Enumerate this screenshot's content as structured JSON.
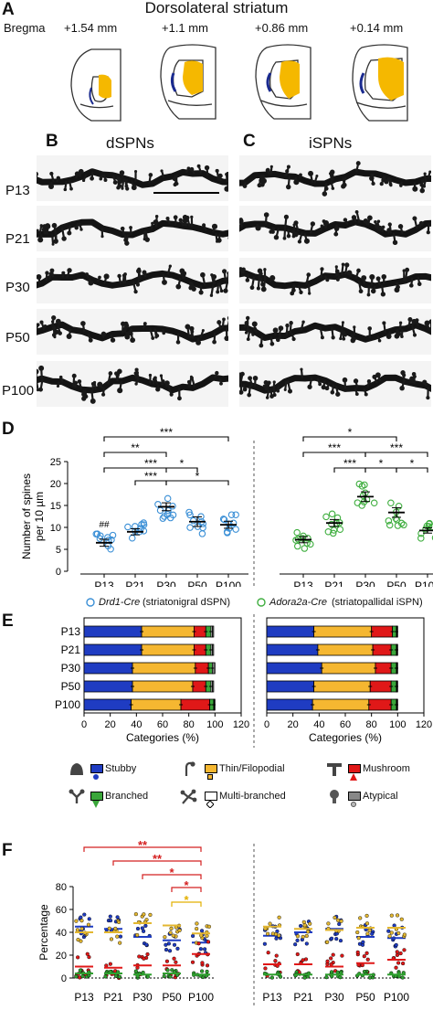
{
  "panel_a": {
    "letter": "A",
    "title": "Dorsolateral striatum",
    "bregma_label": "Bregma",
    "bregma_levels": [
      "+1.54 mm",
      "+1.1 mm",
      "+0.86 mm",
      "+0.14 mm"
    ],
    "colors": {
      "striatum": "#f5b800",
      "accent": "#1a2a8f"
    }
  },
  "panel_b": {
    "letter": "B",
    "title": "dSPNs"
  },
  "panel_c": {
    "letter": "C",
    "title": "iSPNs"
  },
  "ages": [
    "P13",
    "P21",
    "P30",
    "P50",
    "P100"
  ],
  "panel_d": {
    "letter": "D",
    "legend": {
      "d_name": "Drd1-Cre",
      "d_desc": "(striatonigral dSPN)",
      "i_name": "Adora2a-Cre",
      "i_desc": "(striatopallidal iSPN)"
    }
  },
  "panel_e": {
    "letter": "E"
  },
  "panel_f": {
    "letter": "F"
  },
  "morph_legend": {
    "stubby": "Stubby",
    "thin": "Thin/Filopodial",
    "mushroom": "Mushroom",
    "branched": "Branched",
    "multi": "Multi-branched",
    "atypical": "Atypical"
  },
  "chart_data": [
    {
      "id": "D",
      "type": "scatter",
      "ylabel": "Number of spines per 10 µm",
      "ylim": [
        0,
        25
      ],
      "yticks": [
        0,
        5,
        10,
        15,
        20,
        25
      ],
      "categories": [
        "P13",
        "P21",
        "P30",
        "P50",
        "P100"
      ],
      "series": [
        {
          "name": "Drd1-Cre",
          "color": "#3a8fd6",
          "means": [
            6.5,
            9.0,
            14.7,
            11.3,
            10.6
          ],
          "sem": [
            0.8,
            0.7,
            0.9,
            1.1,
            0.8
          ]
        },
        {
          "name": "Adora2a-Cre",
          "color": "#3fae3f",
          "means": [
            7.2,
            11.0,
            17.0,
            13.4,
            9.3
          ],
          "sem": [
            0.7,
            0.8,
            1.1,
            1.1,
            0.6
          ]
        }
      ],
      "annotations": {
        "d_marker": "##",
        "d_brackets": [
          {
            "from": 0,
            "to": 4,
            "label": "***"
          },
          {
            "from": 0,
            "to": 2,
            "label": "**"
          },
          {
            "from": 0,
            "to": 3,
            "label": "***"
          },
          {
            "from": 2,
            "to": 3,
            "label": "*"
          },
          {
            "from": 1,
            "to": 2,
            "label": "***"
          },
          {
            "from": 2,
            "to": 4,
            "label": "*"
          }
        ],
        "i_brackets": [
          {
            "from": 0,
            "to": 3,
            "label": "*"
          },
          {
            "from": 0,
            "to": 2,
            "label": "***"
          },
          {
            "from": 2,
            "to": 4,
            "label": "***"
          },
          {
            "from": 1,
            "to": 2,
            "label": "***"
          },
          {
            "from": 2,
            "to": 3,
            "label": "*"
          },
          {
            "from": 3,
            "to": 4,
            "label": "*"
          }
        ]
      }
    },
    {
      "id": "E",
      "type": "bar",
      "orientation": "horizontal-stacked",
      "xlabel": "Categories (%)",
      "xlim": [
        0,
        120
      ],
      "xticks": [
        0,
        20,
        40,
        60,
        80,
        100,
        120
      ],
      "categories": [
        "P13",
        "P21",
        "P30",
        "P50",
        "P100"
      ],
      "colors": [
        "#1f3cc2",
        "#f5b731",
        "#e01818",
        "#3aa63a",
        "#ffffff",
        "#888888"
      ],
      "dSPN": [
        [
          44,
          40,
          9,
          4,
          1,
          1
        ],
        [
          44,
          40,
          9,
          4,
          1,
          1
        ],
        [
          37,
          48,
          10,
          3,
          1,
          1
        ],
        [
          37,
          46,
          10,
          4,
          1,
          1
        ],
        [
          36,
          38,
          22,
          3,
          0.5,
          0.5
        ]
      ],
      "iSPN": [
        [
          36,
          44,
          16,
          3,
          0.5,
          0.5
        ],
        [
          39,
          42,
          14,
          4,
          0.5,
          0.5
        ],
        [
          42,
          41,
          12,
          4,
          0.5,
          0.5
        ],
        [
          36,
          43,
          16,
          4,
          0.5,
          0.5
        ],
        [
          35,
          43,
          17,
          4,
          0.5,
          0.5
        ]
      ]
    },
    {
      "id": "F",
      "type": "scatter",
      "ylabel": "Percentage",
      "ylim": [
        0,
        80
      ],
      "yticks": [
        0,
        20,
        40,
        60,
        80
      ],
      "categories": [
        "P13",
        "P21",
        "P30",
        "P50",
        "P100"
      ],
      "dSPN_means": {
        "stubby": [
          45,
          43,
          36,
          33,
          31
        ],
        "thin": [
          40,
          40,
          48,
          46,
          39
        ],
        "mushroom": [
          10,
          9,
          11,
          11,
          21
        ],
        "branched": [
          4,
          4,
          3,
          4,
          3
        ]
      },
      "iSPN_means": {
        "stubby": [
          37,
          40,
          43,
          36,
          35
        ],
        "thin": [
          45,
          43,
          42,
          44,
          44
        ],
        "mushroom": [
          12,
          12,
          10,
          13,
          16
        ],
        "branched": [
          3,
          3,
          3,
          3,
          3
        ]
      },
      "significance": [
        {
          "from": 0,
          "to": 4,
          "label": "**",
          "color": "#d42020"
        },
        {
          "from": 1,
          "to": 4,
          "label": "**",
          "color": "#d42020"
        },
        {
          "from": 2,
          "to": 4,
          "label": "*",
          "color": "#d42020"
        },
        {
          "from": 3,
          "to": 4,
          "label": "*",
          "color": "#d42020"
        },
        {
          "from": 3,
          "to": 4,
          "label": "*",
          "color": "#e3b000"
        }
      ]
    }
  ]
}
